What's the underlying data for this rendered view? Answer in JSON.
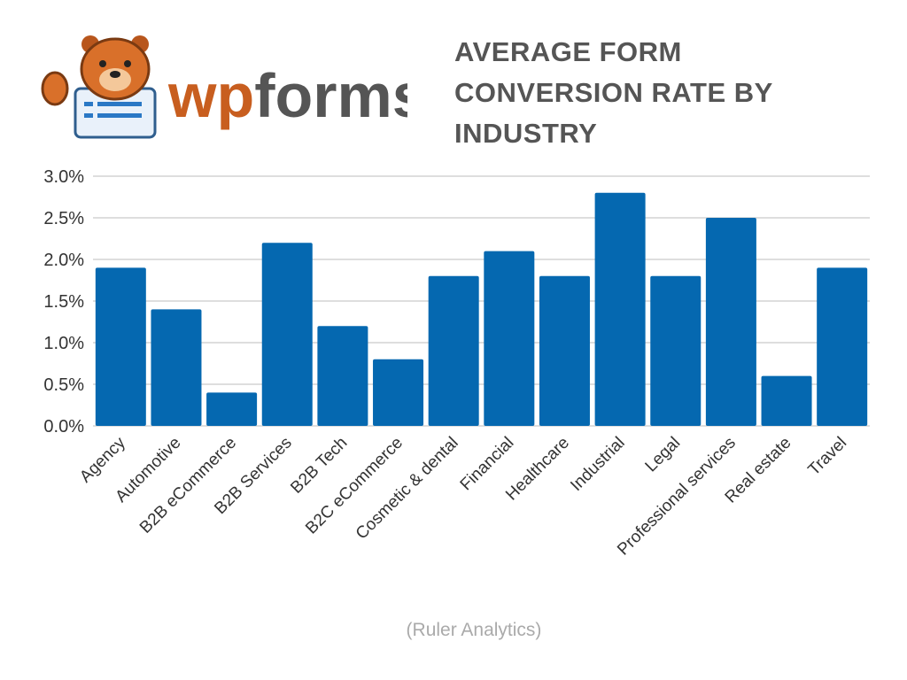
{
  "logo_text": "wpforms",
  "chart_data": {
    "type": "bar",
    "title": "AVERAGE FORM CONVERSION RATE BY INDUSTRY",
    "source": "(Ruler Analytics)",
    "categories": [
      "Agency",
      "Automotive",
      "B2B eCommerce",
      "B2B Services",
      "B2B Tech",
      "B2C eCommerce",
      "Cosmetic & dental",
      "Financial",
      "Healthcare",
      "Industrial",
      "Legal",
      "Professional services",
      "Real estate",
      "Travel"
    ],
    "values": [
      1.9,
      1.4,
      0.4,
      2.2,
      1.2,
      0.8,
      1.8,
      2.1,
      1.8,
      2.8,
      1.8,
      2.5,
      0.6,
      1.9
    ],
    "unit": "%",
    "ylim": [
      0,
      3.0
    ],
    "yticks": [
      "0.0%",
      "0.5%",
      "1.0%",
      "1.5%",
      "2.0%",
      "2.5%",
      "3.0%"
    ],
    "grid": true,
    "bar_color": "#0568b0",
    "grid_color": "#d4d4d4"
  }
}
